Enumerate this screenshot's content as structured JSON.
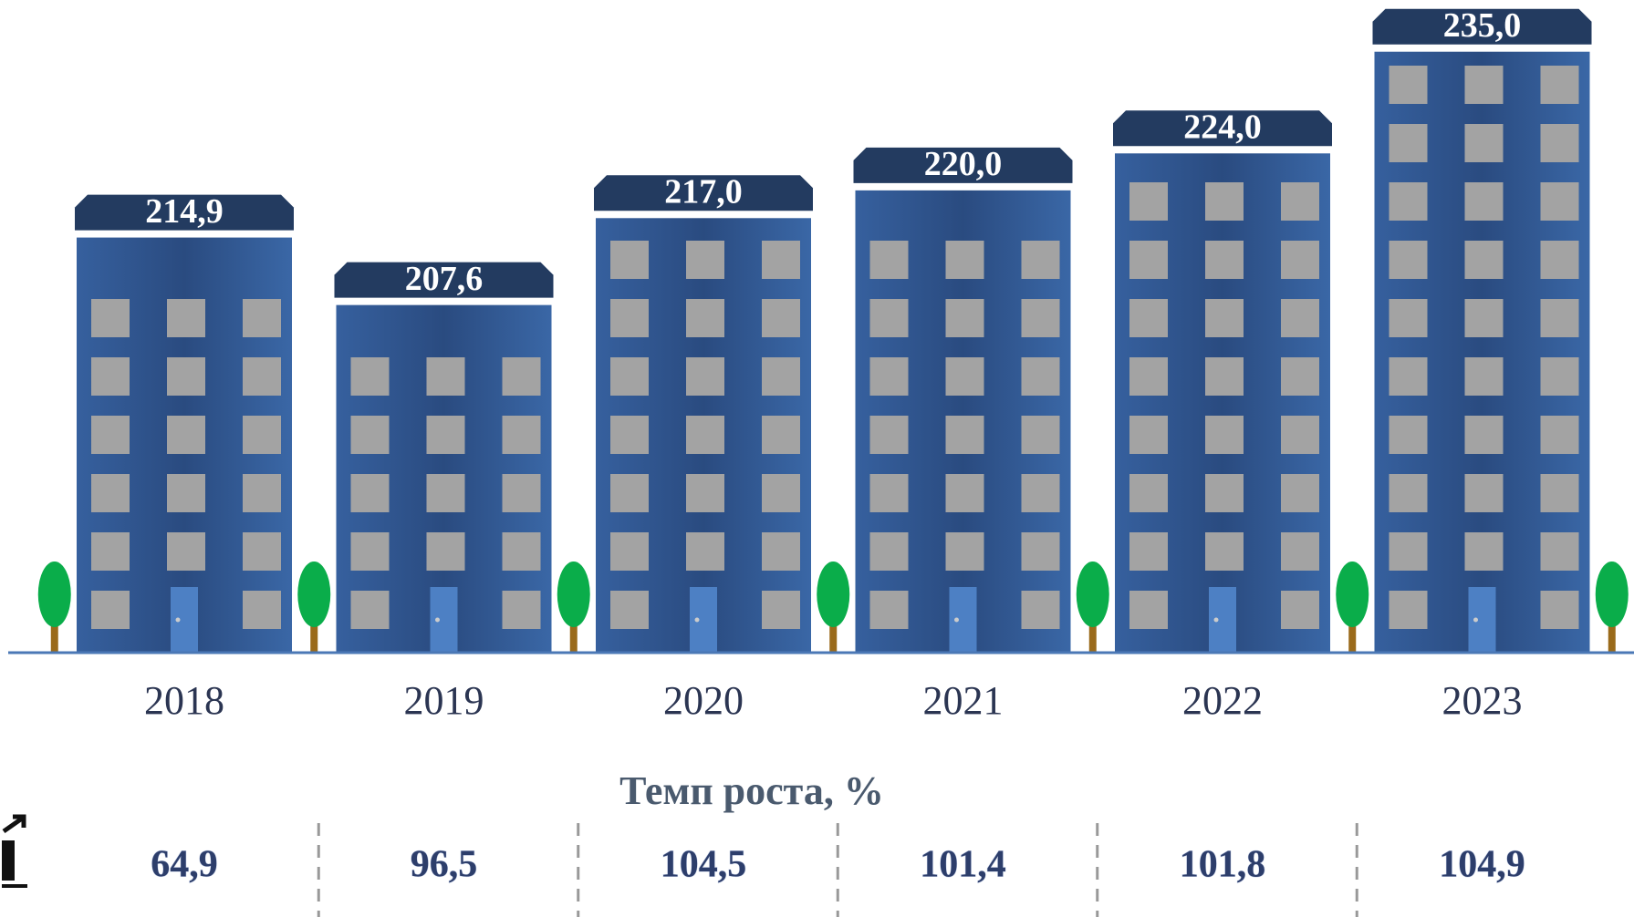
{
  "chart_data": {
    "type": "bar",
    "categories": [
      "2018",
      "2019",
      "2020",
      "2021",
      "2022",
      "2023"
    ],
    "values": [
      214.9,
      207.6,
      217.0,
      220.0,
      224.0,
      235.0
    ],
    "value_labels": [
      "214,9",
      "207,6",
      "217,0",
      "220,0",
      "224,0",
      "235,0"
    ],
    "color": "#2f5590",
    "ylim": [
      170,
      240
    ],
    "growth": {
      "title": "Темп роста, %",
      "values": [
        64.9,
        96.5,
        104.5,
        101.4,
        101.8,
        104.9
      ],
      "value_labels": [
        "64,9",
        "96,5",
        "104,5",
        "101,4",
        "101,8",
        "104,9"
      ]
    }
  }
}
